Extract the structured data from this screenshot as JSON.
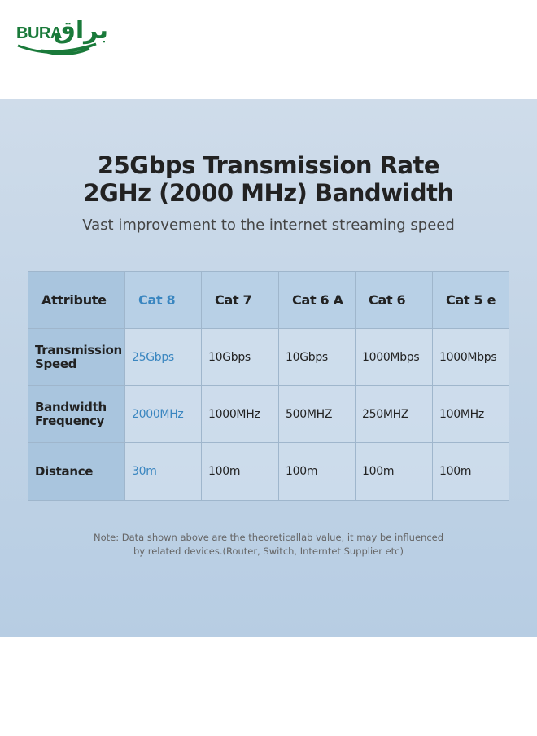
{
  "logo": {
    "latin": "BURA",
    "arabic": "براق"
  },
  "header": {
    "title_line1": "25Gbps Transmission Rate",
    "title_line2": "2GHz (2000 MHz) Bandwidth",
    "subtitle": "Vast improvement to the internet streaming speed"
  },
  "table": {
    "columns": [
      "Attribute",
      "Cat 8",
      "Cat 7",
      "Cat 6 A",
      "Cat 6",
      "Cat 5 e"
    ],
    "rows": [
      [
        "Transmission Speed",
        "25Gbps",
        "10Gbps",
        "10Gbps",
        "1000Mbps",
        "1000Mbps"
      ],
      [
        "Bandwidth Frequency",
        "2000MHz",
        "1000MHz",
        "500MHZ",
        "250MHZ",
        "100MHz"
      ],
      [
        "Distance",
        "30m",
        "100m",
        "100m",
        "100m",
        "100m"
      ]
    ]
  },
  "note": {
    "line1": "Note: Data shown above are the theoreticallab value, it may be influenced",
    "line2": "by related devices.(Router, Switch, Interntet Supplier etc)"
  }
}
